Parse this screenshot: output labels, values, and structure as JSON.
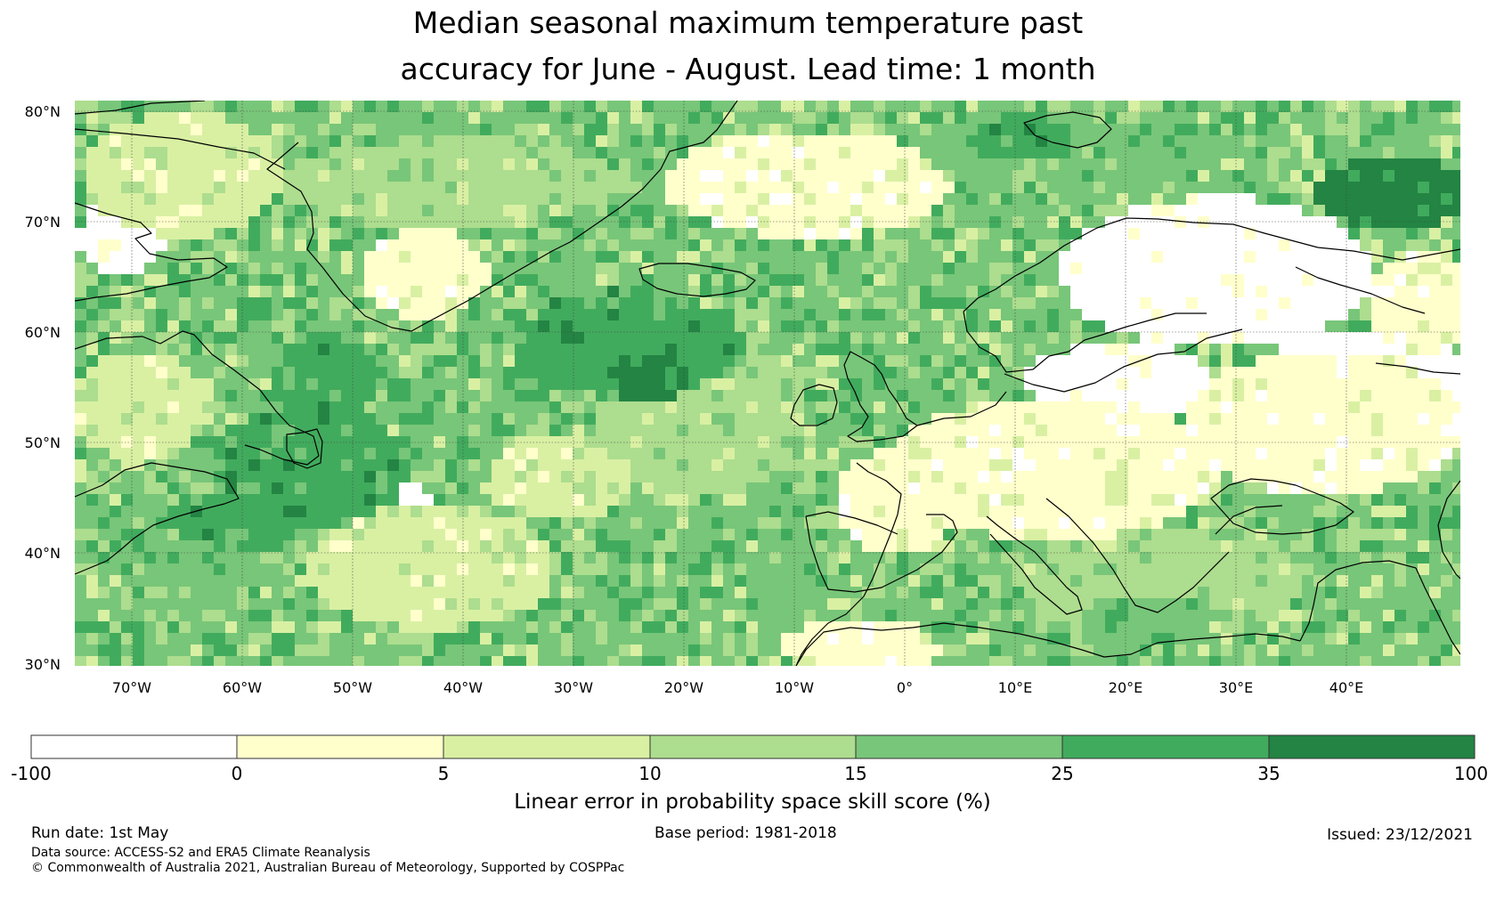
{
  "title": {
    "line1": "Median seasonal maximum temperature past",
    "line2": "accuracy for June - August. Lead time: 1 month"
  },
  "map": {
    "lat_labels": [
      "80°N",
      "70°N",
      "60°N",
      "50°N",
      "40°N",
      "30°N"
    ],
    "lon_labels": [
      "70°W",
      "60°W",
      "50°W",
      "40°W",
      "30°W",
      "20°W",
      "10°W",
      "0°",
      "10°E",
      "20°E",
      "30°E",
      "40°E"
    ],
    "extent": {
      "lon_min": -75,
      "lon_max": 50,
      "lat_min": 30,
      "lat_max": 81
    }
  },
  "colorbar": {
    "tick_labels": [
      "-100",
      "0",
      "5",
      "10",
      "15",
      "25",
      "35",
      "100"
    ],
    "bins": [
      {
        "from": "-100",
        "to": "0",
        "color": "#ffffff"
      },
      {
        "from": "0",
        "to": "5",
        "color": "#ffffcc"
      },
      {
        "from": "5",
        "to": "10",
        "color": "#d9f0a3"
      },
      {
        "from": "10",
        "to": "15",
        "color": "#addd8e"
      },
      {
        "from": "15",
        "to": "25",
        "color": "#78c679"
      },
      {
        "from": "25",
        "to": "35",
        "color": "#41ab5d"
      },
      {
        "from": "35",
        "to": "100",
        "color": "#238443"
      }
    ],
    "label": "Linear error in probability space skill score (%)"
  },
  "footer": {
    "run_date": "Run date: 1st May",
    "base_period": "Base period: 1981-2018",
    "issued": "Issued: 23/12/2021",
    "data_source": "Data source: ACCESS-S2 and ERA5 Climate Reanalysis",
    "copyright": "© Commonwealth of Australia 2021, Australian Bureau of Meteorology, Supported by COSPPac"
  }
}
